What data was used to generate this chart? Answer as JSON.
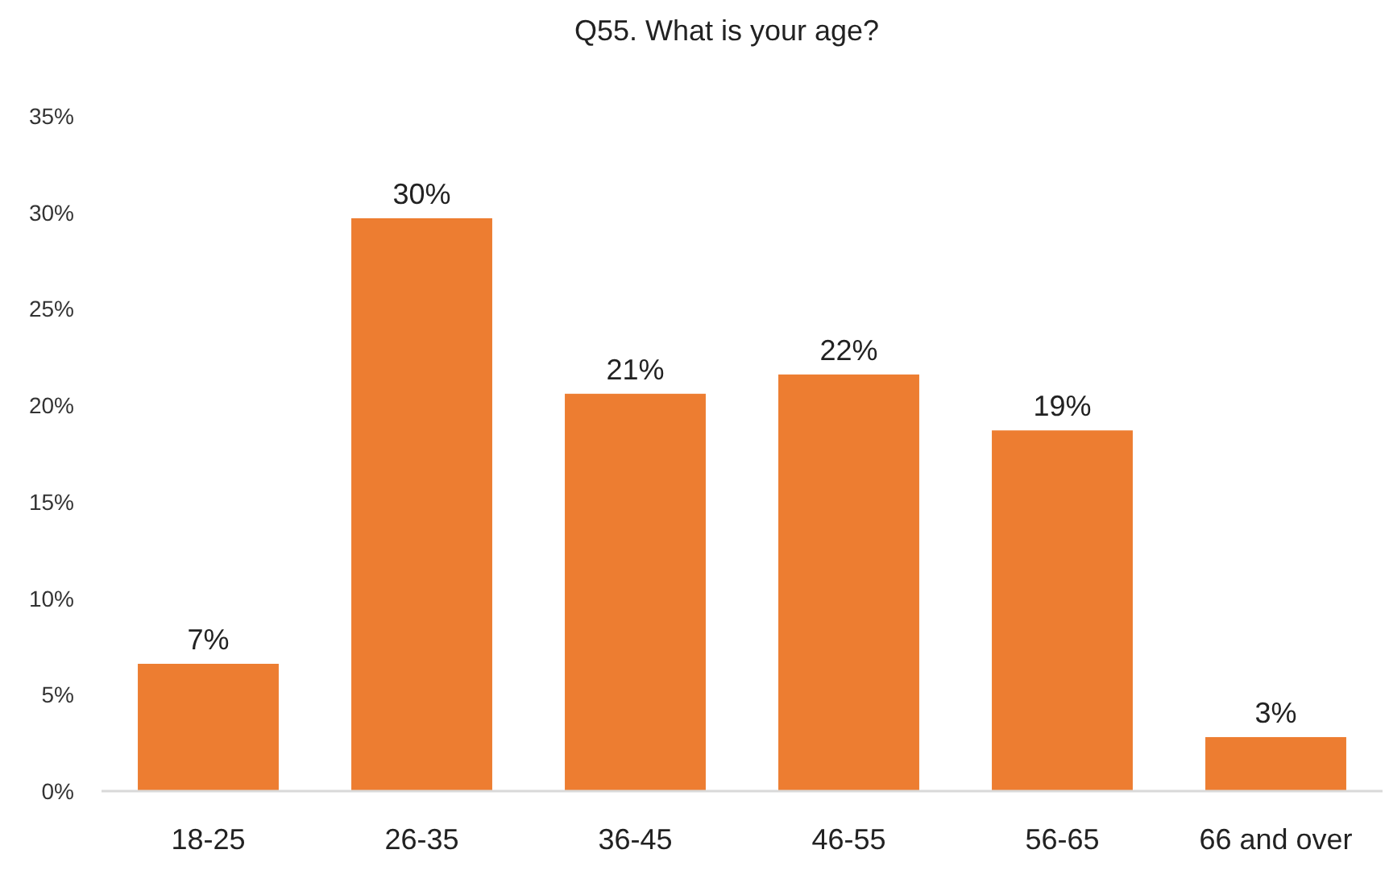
{
  "chart_data": {
    "type": "bar",
    "title": "Q55. What is your age?",
    "categories": [
      "18-25",
      "26-35",
      "36-45",
      "46-55",
      "56-65",
      "66 and over"
    ],
    "values": [
      6.6,
      29.7,
      20.6,
      21.6,
      18.7,
      2.8
    ],
    "color": "#ed7d31",
    "value_labels": [
      "7%",
      "30%",
      "21%",
      "22%",
      "19%",
      "3%"
    ],
    "ylim": [
      0,
      35
    ],
    "yticks": [
      {
        "value": 0,
        "label": "0%"
      },
      {
        "value": 5,
        "label": "5%"
      },
      {
        "value": 10,
        "label": "10%"
      },
      {
        "value": 15,
        "label": "15%"
      },
      {
        "value": 20,
        "label": "20%"
      },
      {
        "value": 25,
        "label": "25%"
      },
      {
        "value": 30,
        "label": "30%"
      },
      {
        "value": 35,
        "label": "35%"
      }
    ],
    "grid": false,
    "legend": false
  }
}
